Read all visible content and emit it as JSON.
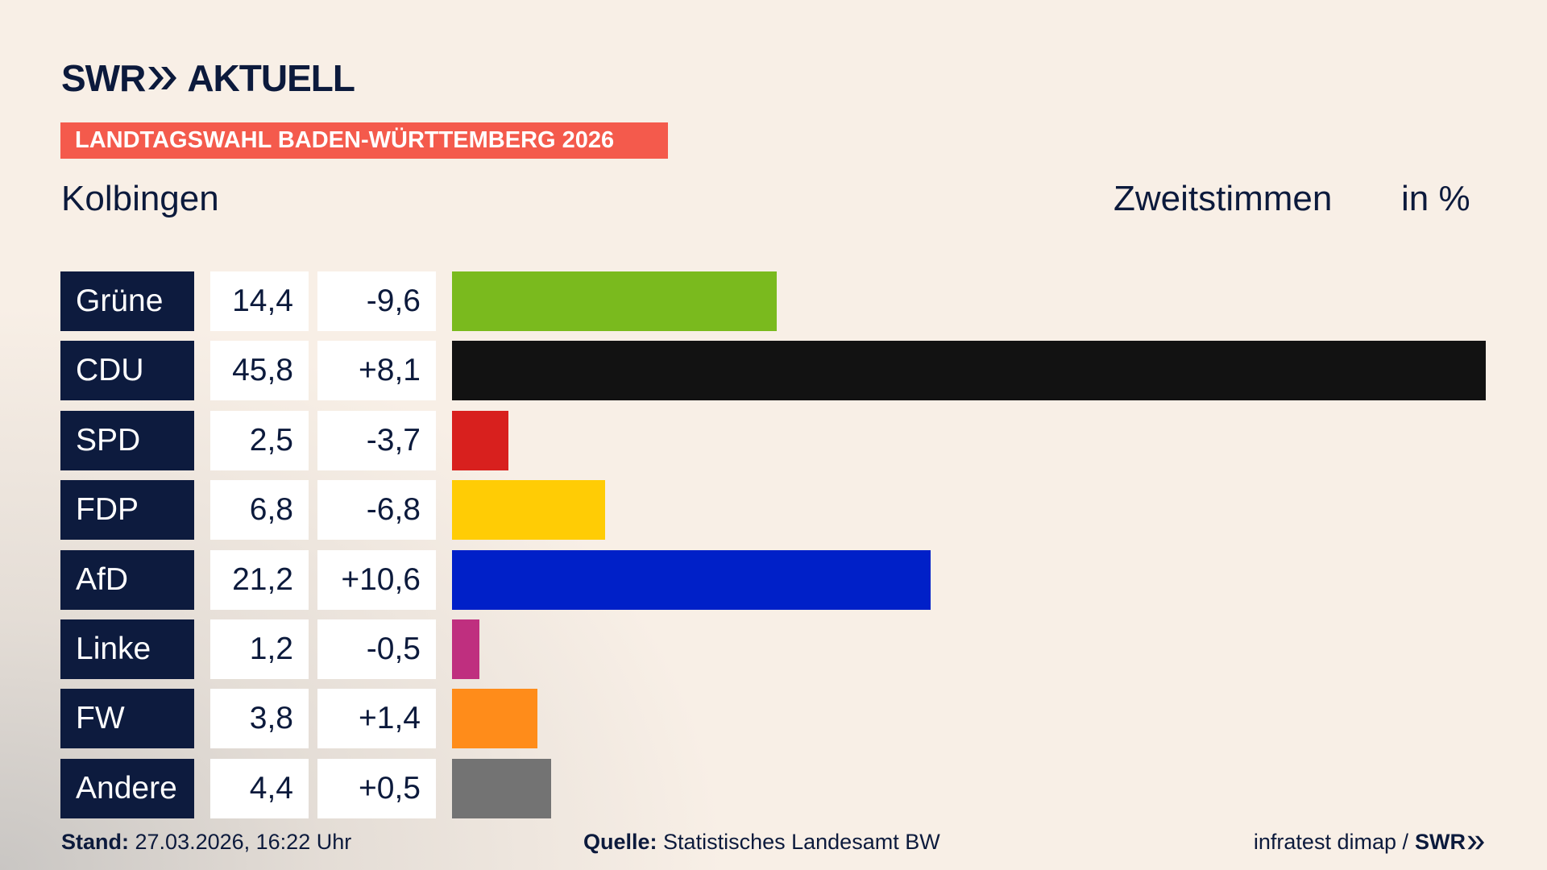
{
  "chart_data": {
    "type": "bar",
    "logo": "SWR",
    "logo_suffix": "AKTUELL",
    "banner": "LANDTAGSWAHL BADEN-WÜRTTEMBERG 2026",
    "title": "Kolbingen",
    "subtitle": "Zweitstimmen",
    "unit": "in %",
    "categories": [
      "Grüne",
      "CDU",
      "SPD",
      "FDP",
      "AfD",
      "Linke",
      "FW",
      "Andere"
    ],
    "values": [
      14.4,
      45.8,
      2.5,
      6.8,
      21.2,
      1.2,
      3.8,
      4.4
    ],
    "value_labels": [
      "14,4",
      "45,8",
      "2,5",
      "6,8",
      "21,2",
      "1,2",
      "3,8",
      "4,4"
    ],
    "changes": [
      -9.6,
      8.1,
      -3.7,
      -6.8,
      10.6,
      -0.5,
      1.4,
      0.5
    ],
    "change_labels": [
      "-9,6",
      "+8,1",
      "-3,7",
      "-6,8",
      "+10,6",
      "-0,5",
      "+1,4",
      "+0,5"
    ],
    "colors": [
      "#7aba1e",
      "#121212",
      "#d8201e",
      "#ffcc05",
      "#0020c8",
      "#bf2f7f",
      "#ff8c1a",
      "#737373"
    ],
    "footer": {
      "stand_label": "Stand:",
      "stand": "27.03.2026, 16:22 Uhr",
      "source_label": "Quelle:",
      "source": "Statistisches Landesamt BW",
      "credit": "infratest dimap /",
      "credit_logo": "SWR"
    }
  }
}
